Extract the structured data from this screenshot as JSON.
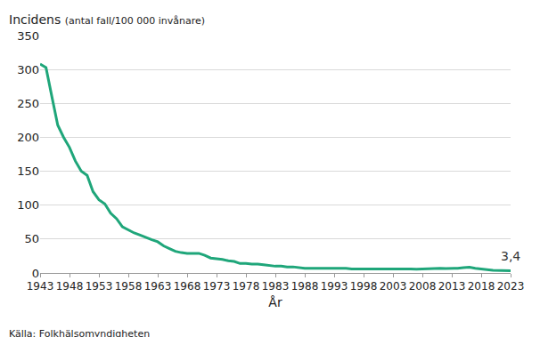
{
  "chart_data": {
    "type": "line",
    "y_label": "Incidens (antal fall/100 000 invånare)",
    "x_label": "År",
    "source": "Källa: Folkhälsomyndigheten",
    "x": [
      1943,
      1944,
      1945,
      1946,
      1947,
      1948,
      1949,
      1950,
      1951,
      1952,
      1953,
      1954,
      1955,
      1956,
      1957,
      1958,
      1959,
      1960,
      1961,
      1962,
      1963,
      1964,
      1965,
      1966,
      1967,
      1968,
      1969,
      1970,
      1971,
      1972,
      1973,
      1974,
      1975,
      1976,
      1977,
      1978,
      1979,
      1980,
      1981,
      1982,
      1983,
      1984,
      1985,
      1986,
      1987,
      1988,
      1989,
      1990,
      1991,
      1992,
      1993,
      1994,
      1995,
      1996,
      1997,
      1998,
      1999,
      2000,
      2001,
      2002,
      2003,
      2004,
      2005,
      2006,
      2007,
      2008,
      2009,
      2010,
      2011,
      2012,
      2013,
      2014,
      2015,
      2016,
      2017,
      2018,
      2019,
      2020,
      2021,
      2022,
      2023
    ],
    "values": [
      308,
      303,
      260,
      218,
      200,
      185,
      165,
      150,
      144,
      120,
      108,
      102,
      88,
      80,
      68,
      63,
      59,
      56,
      52,
      49,
      46,
      40,
      36,
      32,
      30,
      29,
      29,
      29,
      26,
      22,
      21,
      20,
      18,
      17,
      14,
      14,
      13,
      13,
      12,
      11,
      10,
      10,
      9,
      9,
      8,
      7,
      7,
      7,
      7,
      7,
      7.5,
      7,
      7,
      6,
      6,
      6,
      6,
      6,
      6,
      6,
      6,
      6,
      6.5,
      6,
      5.5,
      6,
      6.5,
      7,
      7,
      6.5,
      6.5,
      7,
      8,
      8.5,
      7,
      5.5,
      5,
      4,
      3.5,
      3.5,
      3.4
    ],
    "color": "#1fa67a",
    "xlim": [
      1943,
      2023
    ],
    "xticks": [
      1943,
      1948,
      1953,
      1958,
      1963,
      1968,
      1973,
      1978,
      1983,
      1988,
      1993,
      1998,
      2003,
      2008,
      2013,
      2018,
      2023
    ],
    "ylim": [
      0,
      350
    ],
    "yticks": [
      0,
      50,
      100,
      150,
      200,
      250,
      300,
      350
    ],
    "grid": true,
    "annotations": [
      {
        "text": "3,4",
        "x": 2023,
        "y": 3.4
      }
    ]
  }
}
